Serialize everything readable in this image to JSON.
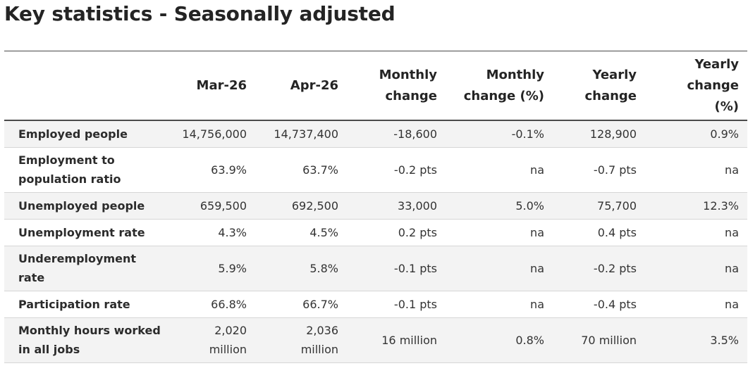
{
  "title": "Key statistics - Seasonally adjusted",
  "table": {
    "headers": {
      "label": "",
      "mar26": "Mar-26",
      "apr26": "Apr-26",
      "monthly_change_1": "Monthly",
      "monthly_change_2": "change",
      "monthly_change_pct_1": "Monthly",
      "monthly_change_pct_2": "change (%)",
      "yearly_change_1": "Yearly",
      "yearly_change_2": "change",
      "yearly_change_pct_1": "Yearly",
      "yearly_change_pct_2": "change",
      "yearly_change_pct_3": "(%)"
    },
    "rows": [
      {
        "label_1": "Employed people",
        "label_2": "",
        "mar26_1": "14,756,000",
        "mar26_2": "",
        "apr26_1": "14,737,400",
        "apr26_2": "",
        "monthly_change": "-18,600",
        "monthly_change_pct": "-0.1%",
        "yearly_change": "128,900",
        "yearly_change_pct": "0.9%"
      },
      {
        "label_1": "Employment to",
        "label_2": "population ratio",
        "mar26_1": "63.9%",
        "mar26_2": "",
        "apr26_1": "63.7%",
        "apr26_2": "",
        "monthly_change": "-0.2 pts",
        "monthly_change_pct": "na",
        "yearly_change": "-0.7 pts",
        "yearly_change_pct": "na"
      },
      {
        "label_1": "Unemployed people",
        "label_2": "",
        "mar26_1": "659,500",
        "mar26_2": "",
        "apr26_1": "692,500",
        "apr26_2": "",
        "monthly_change": "33,000",
        "monthly_change_pct": "5.0%",
        "yearly_change": "75,700",
        "yearly_change_pct": "12.3%"
      },
      {
        "label_1": "Unemployment rate",
        "label_2": "",
        "mar26_1": "4.3%",
        "mar26_2": "",
        "apr26_1": "4.5%",
        "apr26_2": "",
        "monthly_change": "0.2 pts",
        "monthly_change_pct": "na",
        "yearly_change": "0.4 pts",
        "yearly_change_pct": "na"
      },
      {
        "label_1": "Underemployment",
        "label_2": "rate",
        "mar26_1": "5.9%",
        "mar26_2": "",
        "apr26_1": "5.8%",
        "apr26_2": "",
        "monthly_change": "-0.1 pts",
        "monthly_change_pct": "na",
        "yearly_change": "-0.2 pts",
        "yearly_change_pct": "na"
      },
      {
        "label_1": "Participation rate",
        "label_2": "",
        "mar26_1": "66.8%",
        "mar26_2": "",
        "apr26_1": "66.7%",
        "apr26_2": "",
        "monthly_change": "-0.1 pts",
        "monthly_change_pct": "na",
        "yearly_change": "-0.4 pts",
        "yearly_change_pct": "na"
      },
      {
        "label_1": "Monthly hours worked",
        "label_2": "in all jobs",
        "mar26_1": "2,020",
        "mar26_2": "million",
        "apr26_1": "2,036",
        "apr26_2": "million",
        "monthly_change": "16 million",
        "monthly_change_pct": "0.8%",
        "yearly_change": "70 million",
        "yearly_change_pct": "3.5%"
      }
    ]
  }
}
